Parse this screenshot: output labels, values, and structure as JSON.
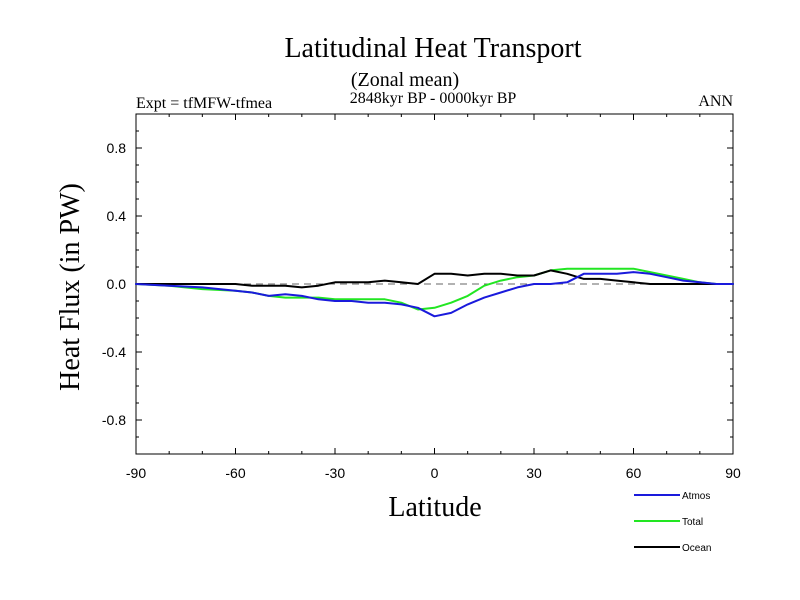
{
  "chart_data": {
    "type": "line",
    "title": "Latitudinal Heat Transport",
    "subtitle": "(Zonal mean)",
    "left_label": "Expt = tfMFW-tfmea",
    "center_label": "2848kyr BP - 0000kyr BP",
    "right_label": "ANN",
    "xlabel": "Latitude",
    "ylabel": "Heat Flux (in PW)",
    "xlim": [
      -90,
      90
    ],
    "ylim": [
      -1.0,
      1.0
    ],
    "xticks": [
      -90,
      -60,
      -30,
      0,
      30,
      60,
      90
    ],
    "xtick_labels": [
      "-90",
      "-60",
      "-30",
      "0",
      "30",
      "60",
      "90"
    ],
    "yticks": [
      -0.8,
      -0.4,
      0.0,
      0.4,
      0.8
    ],
    "ytick_labels": [
      "-0.8",
      "-0.4",
      "0.0",
      "0.4",
      "0.8"
    ],
    "zero_line": "dashed",
    "legend_position": "bottom-right outside",
    "series": [
      {
        "name": "Atmos",
        "color": "#1a1adc",
        "x": [
          -90,
          -80,
          -70,
          -60,
          -55,
          -50,
          -45,
          -40,
          -35,
          -30,
          -25,
          -20,
          -15,
          -10,
          -5,
          0,
          5,
          10,
          15,
          20,
          25,
          30,
          35,
          40,
          45,
          50,
          55,
          60,
          65,
          70,
          75,
          80,
          85,
          90
        ],
        "y": [
          0.0,
          -0.01,
          -0.02,
          -0.04,
          -0.05,
          -0.07,
          -0.06,
          -0.07,
          -0.09,
          -0.1,
          -0.1,
          -0.11,
          -0.11,
          -0.12,
          -0.14,
          -0.19,
          -0.17,
          -0.12,
          -0.08,
          -0.05,
          -0.02,
          0.0,
          0.0,
          0.01,
          0.06,
          0.06,
          0.06,
          0.07,
          0.06,
          0.04,
          0.02,
          0.01,
          0.0,
          0.0
        ]
      },
      {
        "name": "Total",
        "color": "#22e622",
        "x": [
          -90,
          -80,
          -70,
          -60,
          -55,
          -50,
          -45,
          -40,
          -35,
          -30,
          -25,
          -20,
          -15,
          -10,
          -5,
          0,
          5,
          10,
          15,
          20,
          25,
          30,
          35,
          40,
          45,
          50,
          55,
          60,
          65,
          70,
          75,
          80,
          85,
          90
        ],
        "y": [
          0.0,
          -0.01,
          -0.03,
          -0.04,
          -0.05,
          -0.07,
          -0.08,
          -0.08,
          -0.08,
          -0.09,
          -0.09,
          -0.09,
          -0.09,
          -0.11,
          -0.15,
          -0.14,
          -0.11,
          -0.07,
          -0.01,
          0.02,
          0.04,
          0.05,
          0.08,
          0.09,
          0.09,
          0.09,
          0.09,
          0.09,
          0.07,
          0.05,
          0.03,
          0.01,
          0.0,
          0.0
        ]
      },
      {
        "name": "Ocean",
        "color": "#000000",
        "x": [
          -90,
          -80,
          -70,
          -60,
          -55,
          -50,
          -45,
          -40,
          -35,
          -30,
          -25,
          -20,
          -15,
          -10,
          -5,
          0,
          5,
          10,
          15,
          20,
          25,
          30,
          35,
          40,
          45,
          50,
          55,
          60,
          65,
          70,
          75,
          80,
          85,
          90
        ],
        "y": [
          0.0,
          0.0,
          0.0,
          0.0,
          -0.01,
          -0.01,
          -0.01,
          -0.02,
          -0.01,
          0.01,
          0.01,
          0.01,
          0.02,
          0.01,
          0.0,
          0.06,
          0.06,
          0.05,
          0.06,
          0.06,
          0.05,
          0.05,
          0.08,
          0.06,
          0.03,
          0.03,
          0.02,
          0.01,
          0.0,
          0.0,
          0.0,
          0.0,
          0.0,
          0.0
        ]
      }
    ]
  }
}
